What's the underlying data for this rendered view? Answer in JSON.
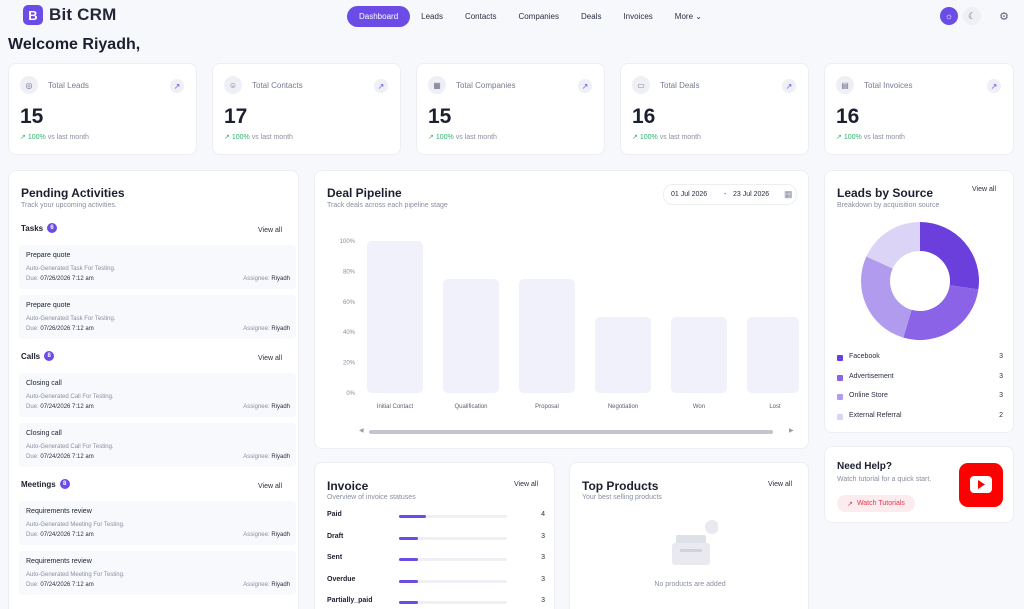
{
  "app": {
    "logo_letter": "B",
    "name": "Bit CRM"
  },
  "nav": {
    "links": [
      "Dashboard",
      "Leads",
      "Contacts",
      "Companies",
      "Deals",
      "Invoices"
    ],
    "more": "More",
    "chevron": "⌄"
  },
  "welcome": "Welcome Riyadh,",
  "stats": [
    {
      "label": "Total Leads",
      "value": "15",
      "change": "100%",
      "sub": "vs last month",
      "icon": "target-icon"
    },
    {
      "label": "Total Contacts",
      "value": "17",
      "change": "100%",
      "sub": "vs last month",
      "icon": "user-icon"
    },
    {
      "label": "Total Companies",
      "value": "15",
      "change": "100%",
      "sub": "vs last month",
      "icon": "building-icon"
    },
    {
      "label": "Total Deals",
      "value": "16",
      "change": "100%",
      "sub": "vs last month",
      "icon": "handshake-icon"
    },
    {
      "label": "Total Invoices",
      "value": "16",
      "change": "100%",
      "sub": "vs last month",
      "icon": "document-icon"
    }
  ],
  "pending": {
    "title": "Pending Activities",
    "subtitle": "Track your upcoming activities.",
    "view_all": "View all",
    "sections": [
      {
        "name": "Tasks",
        "count": "6",
        "items": [
          {
            "title": "Prepare quote",
            "desc": "Auto-Generated Task For Testing.",
            "due_label": "Due:",
            "due": "07/26/2026 7:12 am",
            "assignee_label": "Assignee:",
            "assignee": "Riyadh"
          },
          {
            "title": "Prepare quote",
            "desc": "Auto-Generated Task For Testing.",
            "due_label": "Due:",
            "due": "07/26/2026 7:12 am",
            "assignee_label": "Assignee:",
            "assignee": "Riyadh"
          }
        ]
      },
      {
        "name": "Calls",
        "count": "8",
        "items": [
          {
            "title": "Closing call",
            "desc": "Auto-Generated Call For Testing.",
            "due_label": "Due:",
            "due": "07/24/2026 7:12 am",
            "assignee_label": "Assignee:",
            "assignee": "Riyadh"
          },
          {
            "title": "Closing call",
            "desc": "Auto-Generated Call For Testing.",
            "due_label": "Due:",
            "due": "07/24/2026 7:12 am",
            "assignee_label": "Assignee:",
            "assignee": "Riyadh"
          }
        ]
      },
      {
        "name": "Meetings",
        "count": "8",
        "items": [
          {
            "title": "Requirements review",
            "desc": "Auto-Generated Meeting For Testing.",
            "due_label": "Due:",
            "due": "07/24/2026 7:12 am",
            "assignee_label": "Assignee:",
            "assignee": "Riyadh"
          },
          {
            "title": "Requirements review",
            "desc": "Auto-Generated Meeting For Testing.",
            "due_label": "Due:",
            "due": "07/24/2026 7:12 am",
            "assignee_label": "Assignee:",
            "assignee": "Riyadh"
          }
        ]
      }
    ]
  },
  "pipeline": {
    "title": "Deal Pipeline",
    "subtitle": "Track deals across each pipeline stage",
    "date_from": "01 Jul 2026",
    "date_sep": "-",
    "date_to": "23 Jul 2026",
    "scroll_left": "◀",
    "scroll_right": "▶"
  },
  "chart_data": {
    "type": "bar",
    "categories": [
      "Initial Contact",
      "Qualification",
      "Proposal",
      "Negotiation",
      "Won",
      "Lost"
    ],
    "values": [
      100,
      75,
      75,
      50,
      50,
      50
    ],
    "y_ticks": [
      "100%",
      "80%",
      "60%",
      "40%",
      "20%",
      "0%"
    ],
    "ylim": [
      0,
      100
    ],
    "bar_color": "#f0f1fb",
    "grid": false
  },
  "invoice": {
    "title": "Invoice",
    "subtitle": "Overview of invoice statuses",
    "view_all": "View all",
    "rows": [
      {
        "label": "Paid",
        "count": "4",
        "fraction": 0.25
      },
      {
        "label": "Draft",
        "count": "3",
        "fraction": 0.18
      },
      {
        "label": "Sent",
        "count": "3",
        "fraction": 0.18
      },
      {
        "label": "Overdue",
        "count": "3",
        "fraction": 0.18
      },
      {
        "label": "Partially_paid",
        "count": "3",
        "fraction": 0.18
      }
    ]
  },
  "top_products": {
    "title": "Top Products",
    "subtitle": "Your best selling products",
    "view_all": "View all",
    "empty": "No products are added"
  },
  "leads_source": {
    "title": "Leads by Source",
    "subtitle": "Breakdown by acquisition source",
    "view_all": "View all",
    "items": [
      {
        "name": "Facebook",
        "value": "3",
        "num": 3,
        "color": "#6a3fdc"
      },
      {
        "name": "Advertisement",
        "value": "3",
        "num": 3,
        "color": "#8a63e6"
      },
      {
        "name": "Online Store",
        "value": "3",
        "num": 3,
        "color": "#b09bee"
      },
      {
        "name": "External Referral",
        "value": "2",
        "num": 2,
        "color": "#dcd4f7"
      }
    ]
  },
  "help": {
    "title": "Need Help?",
    "subtitle": "Watch tutorial for a quick start.",
    "button": "Watch Tutorials",
    "arrow": "↗"
  },
  "ui": {
    "arrow": "↗",
    "accent": "#6b4ce6",
    "positive": "#2fb36b"
  }
}
